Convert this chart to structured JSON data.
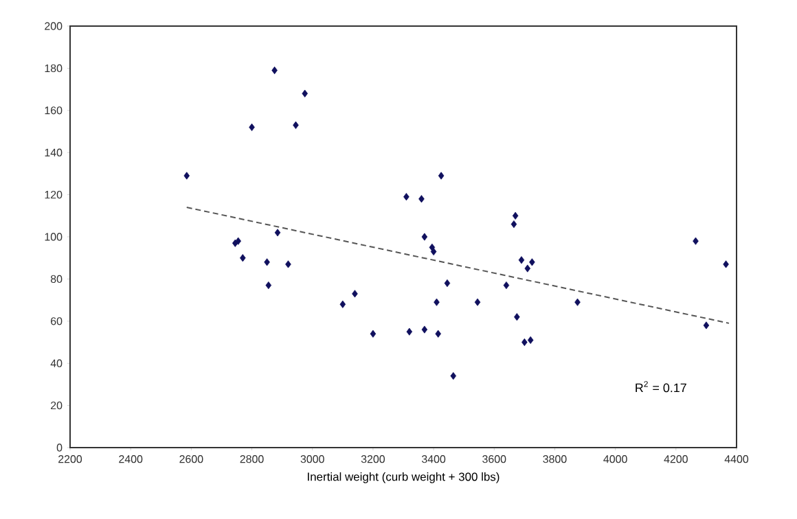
{
  "chart_data": {
    "type": "scatter",
    "xlabel": "Inertial weight (curb weight + 300 lbs)",
    "xlim": [
      2200,
      4400
    ],
    "xticks": [
      2200,
      2400,
      2600,
      2800,
      3000,
      3200,
      3400,
      3600,
      3800,
      4000,
      4200,
      4400
    ],
    "ylim": [
      0,
      200
    ],
    "yticks": [
      0,
      20,
      40,
      60,
      80,
      100,
      120,
      140,
      160,
      180,
      200
    ],
    "grid": false,
    "marker": "diamond",
    "annotations": [
      "R$^{2}$ = 0.17"
    ],
    "series": [
      {
        "color": "#10105e",
        "x": [
          2585,
          2745,
          2755,
          2770,
          2800,
          2850,
          2855,
          2875,
          2885,
          2920,
          2945,
          2975,
          3100,
          3140,
          3200,
          3310,
          3320,
          3360,
          3370,
          3370,
          3395,
          3400,
          3410,
          3415,
          3425,
          3445,
          3465,
          3545,
          3640,
          3665,
          3670,
          3675,
          3690,
          3700,
          3710,
          3720,
          3725,
          3875,
          4265,
          4300,
          4365
        ],
        "values": [
          129,
          97,
          98,
          90,
          152,
          88,
          77,
          179,
          102,
          87,
          153,
          168,
          68,
          73,
          54,
          119,
          55,
          118,
          56,
          100,
          95,
          93,
          69,
          54,
          129,
          78,
          34,
          69,
          77,
          106,
          110,
          62,
          89,
          50,
          85,
          51,
          88,
          69,
          98,
          58,
          87
        ]
      },
      {
        "type": "line",
        "color": "#555555",
        "line_style": "dashed",
        "marker": "none",
        "x": [
          2585,
          4375
        ],
        "values": [
          114,
          59
        ]
      }
    ]
  }
}
